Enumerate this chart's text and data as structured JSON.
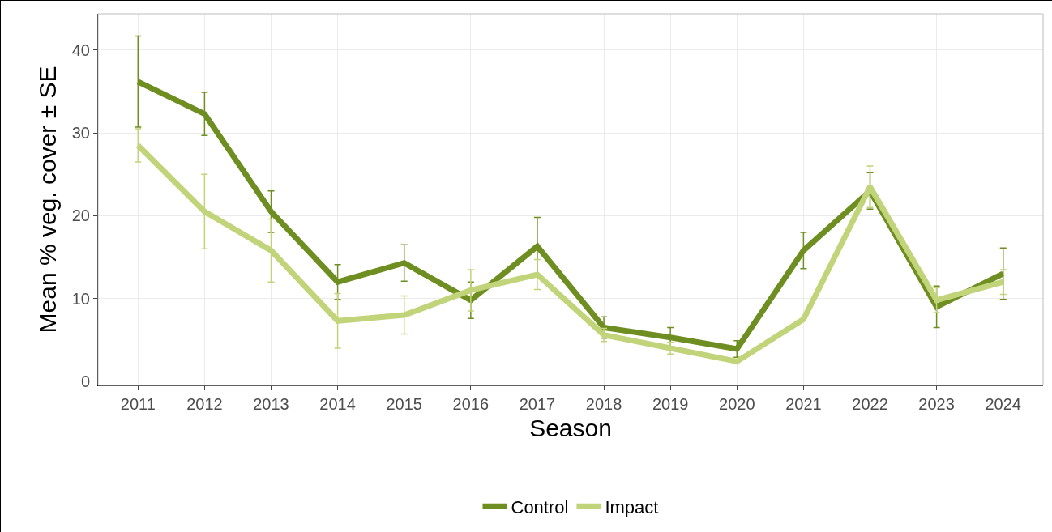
{
  "chart_data": {
    "type": "line",
    "xlabel": "Season",
    "ylabel": "Mean % veg. cover ± SE",
    "categories": [
      "2011",
      "2012",
      "2013",
      "2014",
      "2015",
      "2016",
      "2017",
      "2018",
      "2019",
      "2020",
      "2021",
      "2022",
      "2023",
      "2024"
    ],
    "series": [
      {
        "name": "Control",
        "color": "#6f8e22",
        "values": [
          36.2,
          32.3,
          20.5,
          12,
          14.3,
          9.8,
          16.3,
          6.5,
          5.3,
          3.9,
          15.8,
          23,
          9,
          13
        ],
        "errors": [
          5.5,
          2.6,
          2.5,
          2.1,
          2.2,
          2.2,
          3.5,
          1.3,
          1.2,
          1.0,
          2.2,
          2.2,
          2.5,
          3.1
        ]
      },
      {
        "name": "Impact",
        "color": "#c2d47a",
        "values": [
          28.5,
          20.5,
          15.8,
          7.3,
          8,
          11,
          12.9,
          5.6,
          4,
          2.4,
          7.5,
          23.5,
          9.8,
          12
        ],
        "errors": [
          2,
          4.5,
          3.8,
          3.3,
          2.3,
          2.5,
          1.8,
          0.8,
          0.7,
          null,
          null,
          2.5,
          1.5,
          1.5
        ]
      }
    ],
    "ylim": [
      -0.5,
      44.4
    ],
    "yticks": [
      0,
      10,
      20,
      30,
      40
    ],
    "grid": true,
    "legend": "bottom",
    "marker": "none",
    "line_style": "solid"
  }
}
